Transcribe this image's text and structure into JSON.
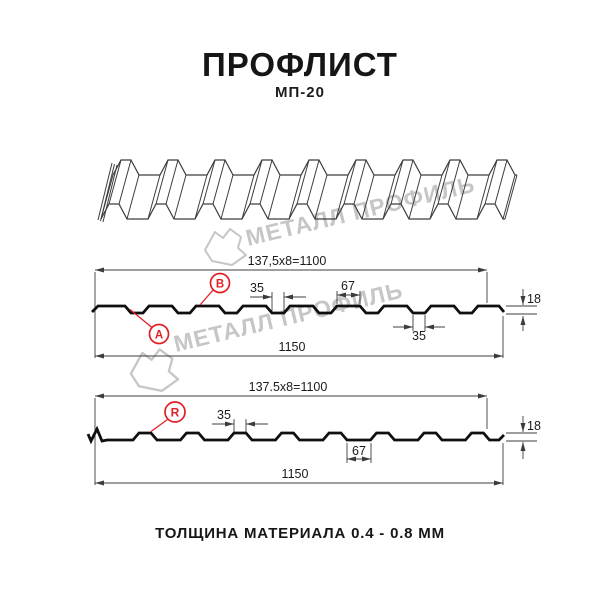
{
  "header": {
    "title": "ПРОФЛИСТ",
    "subtitle": "МП-20"
  },
  "watermark": {
    "text": "МЕТАЛЛ ПРОФИЛЬ"
  },
  "drawing": {
    "sections": {
      "top": {
        "dim_working_width": "137,5x8=1100",
        "dim_crest_width": "35",
        "dim_flat_width": "67",
        "dim_height": "18",
        "dim_bottom_width": "35",
        "dim_overall_width": "1150",
        "label_a": "A",
        "label_b": "B"
      },
      "bottom": {
        "dim_working_width": "137.5x8=1100",
        "dim_crest_width": "35",
        "dim_flat_width": "67",
        "dim_height": "18",
        "dim_overall_width": "1150",
        "label_r": "R"
      }
    }
  },
  "footer": {
    "note": "ТОЛЩИНА МАТЕРИАЛА 0.4 - 0.8 ММ"
  },
  "colors": {
    "ink": "#0f0f0f",
    "dim_line": "#3c3c3c",
    "accent_red": "#e31e24",
    "watermark_gray": "#c6c6c6",
    "persp_line": "#3d3d3d"
  }
}
